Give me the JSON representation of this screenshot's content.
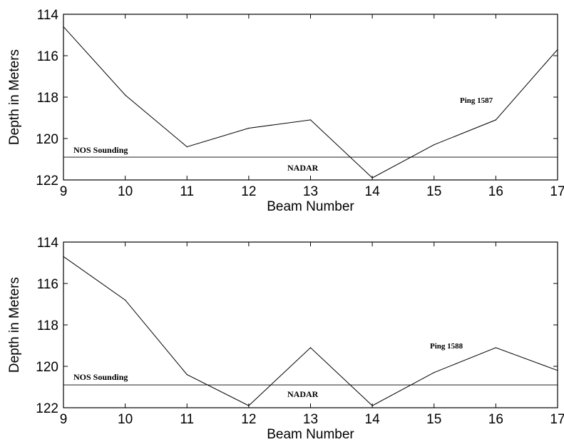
{
  "chart_data": [
    {
      "type": "line",
      "title": "",
      "xlabel": "Beam Number",
      "ylabel": "Depth in Meters",
      "xlim": [
        9,
        17
      ],
      "ylim": [
        114,
        122
      ],
      "y_inverted": true,
      "xticks": [
        "9",
        "10",
        "11",
        "12",
        "13",
        "14",
        "15",
        "16",
        "17"
      ],
      "yticks": [
        "114",
        "116",
        "118",
        "120",
        "122"
      ],
      "grid": false,
      "x": [
        9,
        10,
        11,
        12,
        13,
        14,
        15,
        16,
        17
      ],
      "series": [
        {
          "values": [
            114.6,
            117.9,
            120.4,
            119.5,
            119.1,
            121.9,
            120.3,
            119.1,
            115.7
          ]
        }
      ],
      "reference_line": {
        "value": 120.9,
        "label": "NOS Sounding"
      },
      "annotations": [
        "Ping 1587",
        "NADAR"
      ]
    },
    {
      "type": "line",
      "title": "",
      "xlabel": "Beam Number",
      "ylabel": "Depth in Meters",
      "xlim": [
        9,
        17
      ],
      "ylim": [
        114,
        122
      ],
      "y_inverted": true,
      "xticks": [
        "9",
        "10",
        "11",
        "12",
        "13",
        "14",
        "15",
        "16",
        "17"
      ],
      "yticks": [
        "114",
        "116",
        "118",
        "120",
        "122"
      ],
      "grid": false,
      "x": [
        9,
        10,
        11,
        12,
        13,
        14,
        15,
        16,
        17
      ],
      "series": [
        {
          "values": [
            114.7,
            116.8,
            120.4,
            121.9,
            119.1,
            121.9,
            120.3,
            119.1,
            120.2
          ]
        }
      ],
      "reference_line": {
        "value": 120.9,
        "label": "NOS Sounding"
      },
      "annotations": [
        "Ping 1588",
        "NADAR"
      ]
    }
  ]
}
